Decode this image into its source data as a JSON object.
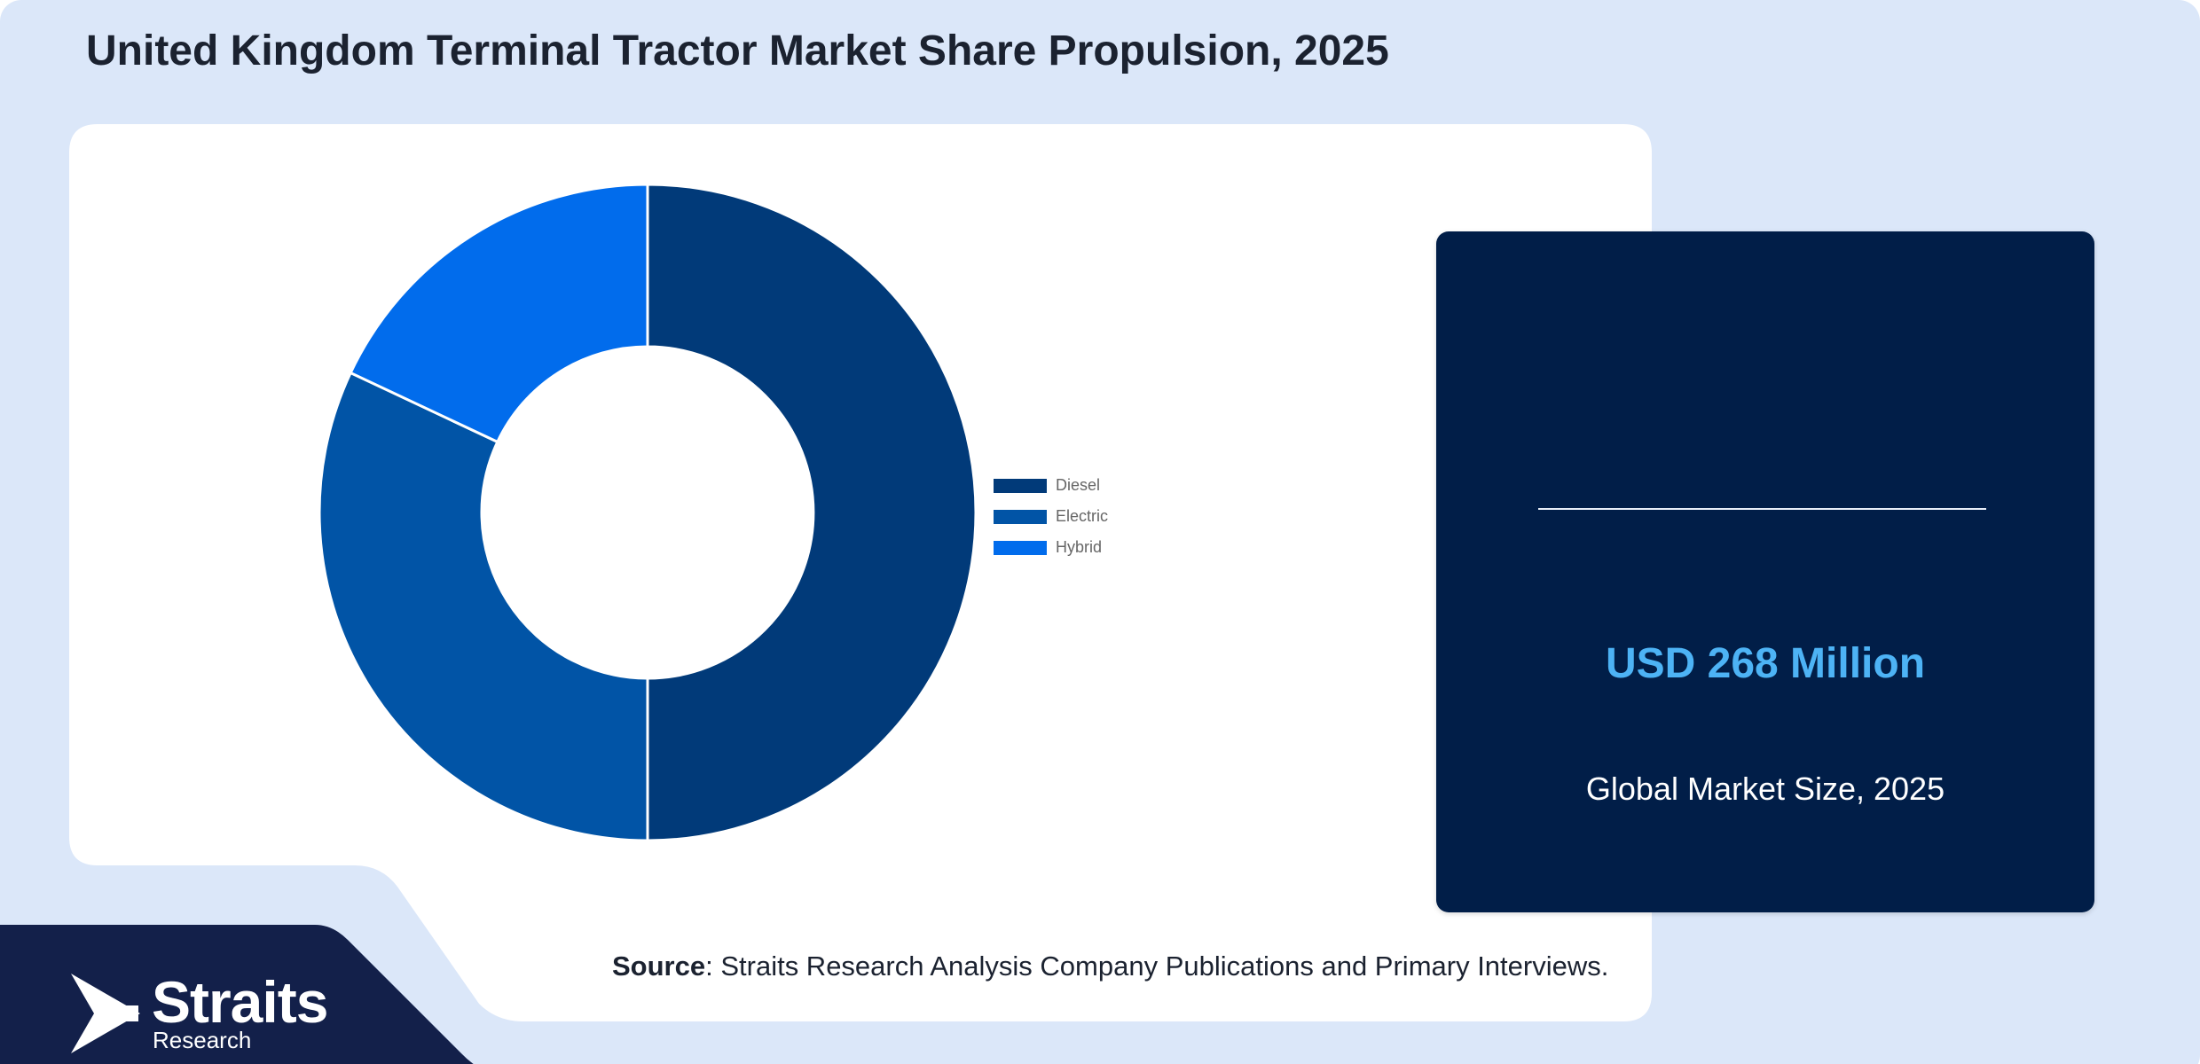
{
  "title": "United Kingdom Terminal Tractor Market Share Propulsion, 2025",
  "stats": {
    "value": "USD 268 Million",
    "label": "Global Market Size, 2025"
  },
  "source": {
    "prefix": "Source",
    "text": ": Straits Research Analysis Company Publications and Primary Interviews."
  },
  "brand": {
    "name": "Straits",
    "subname": "Research"
  },
  "colors": {
    "background": "#dbe7f9",
    "card": "#ffffff",
    "stats_card": "#011e48",
    "stat_value": "#4db3f5",
    "footer_band": "#13204a"
  },
  "chart_data": {
    "type": "pie",
    "variant": "donut",
    "categories": [
      "Diesel",
      "Electric",
      "Hybrid"
    ],
    "values": [
      50,
      32,
      18
    ],
    "colors": [
      "#013a79",
      "#0154a6",
      "#016cec"
    ],
    "legend_position": "right"
  }
}
